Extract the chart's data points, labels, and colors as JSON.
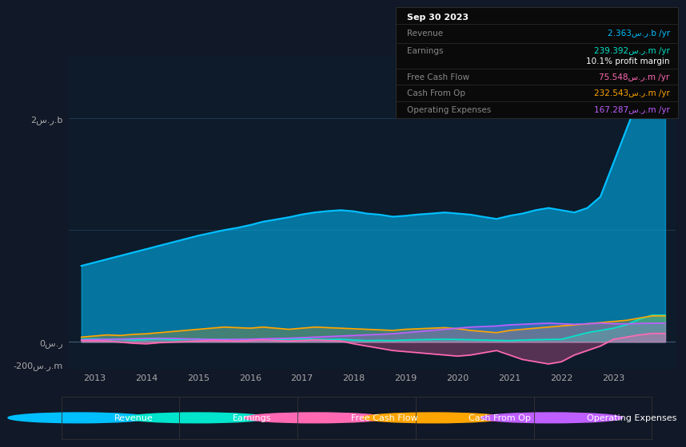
{
  "background_color": "#111827",
  "plot_bg_color": "#0d1b2a",
  "years": [
    2012.75,
    2013.0,
    2013.25,
    2013.5,
    2013.75,
    2014.0,
    2014.25,
    2014.5,
    2014.75,
    2015.0,
    2015.25,
    2015.5,
    2015.75,
    2016.0,
    2016.25,
    2016.5,
    2016.75,
    2017.0,
    2017.25,
    2017.5,
    2017.75,
    2018.0,
    2018.25,
    2018.5,
    2018.75,
    2019.0,
    2019.25,
    2019.5,
    2019.75,
    2020.0,
    2020.25,
    2020.5,
    2020.75,
    2021.0,
    2021.25,
    2021.5,
    2021.75,
    2022.0,
    2022.25,
    2022.5,
    2022.75,
    2023.0,
    2023.25,
    2023.5,
    2023.75,
    2024.0
  ],
  "revenue": [
    680,
    710,
    740,
    770,
    800,
    830,
    860,
    890,
    920,
    950,
    975,
    1000,
    1020,
    1045,
    1075,
    1095,
    1115,
    1140,
    1158,
    1170,
    1178,
    1168,
    1148,
    1138,
    1120,
    1128,
    1140,
    1148,
    1158,
    1148,
    1138,
    1118,
    1100,
    1128,
    1148,
    1178,
    1198,
    1178,
    1158,
    1198,
    1298,
    1598,
    1898,
    2198,
    2363,
    2363
  ],
  "earnings": [
    22,
    26,
    19,
    23,
    16,
    21,
    26,
    19,
    23,
    26,
    21,
    23,
    19,
    23,
    26,
    21,
    23,
    26,
    23,
    21,
    23,
    16,
    11,
    13,
    11,
    16,
    19,
    21,
    23,
    21,
    19,
    16,
    13,
    11,
    16,
    19,
    21,
    23,
    52,
    82,
    102,
    122,
    152,
    202,
    239,
    239
  ],
  "free_cash_flow": [
    12,
    10,
    7,
    -3,
    -13,
    -18,
    -8,
    -3,
    2,
    7,
    12,
    10,
    7,
    12,
    17,
    12,
    7,
    12,
    17,
    12,
    7,
    -18,
    -38,
    -58,
    -78,
    -88,
    -98,
    -108,
    -118,
    -128,
    -118,
    -98,
    -78,
    -118,
    -158,
    -178,
    -198,
    -178,
    -118,
    -78,
    -38,
    22,
    42,
    62,
    75,
    75
  ],
  "cash_from_op": [
    42,
    52,
    62,
    57,
    67,
    72,
    82,
    92,
    102,
    112,
    122,
    132,
    127,
    122,
    132,
    122,
    112,
    122,
    132,
    127,
    122,
    117,
    112,
    107,
    102,
    112,
    117,
    122,
    127,
    117,
    102,
    92,
    82,
    102,
    112,
    122,
    132,
    142,
    152,
    162,
    172,
    182,
    192,
    212,
    232,
    232
  ],
  "operating_expenses": [
    17,
    20,
    22,
    24,
    27,
    30,
    32,
    30,
    27,
    24,
    22,
    20,
    22,
    24,
    27,
    30,
    32,
    37,
    42,
    47,
    52,
    57,
    62,
    67,
    72,
    82,
    92,
    102,
    112,
    122,
    132,
    137,
    142,
    152,
    157,
    162,
    167,
    162,
    157,
    162,
    167,
    162,
    160,
    164,
    167,
    167
  ],
  "revenue_color": "#00bfff",
  "earnings_color": "#00e5cc",
  "free_cash_flow_color": "#ff69b4",
  "cash_from_op_color": "#ffa500",
  "operating_expenses_color": "#bf5fff",
  "ytick_top": "2س.ر.b",
  "ytick_zero": "0س.ر",
  "ytick_neg": "-200س.ر.m",
  "xticks": [
    2013,
    2014,
    2015,
    2016,
    2017,
    2018,
    2019,
    2020,
    2021,
    2022,
    2023
  ],
  "legend_items": [
    "Revenue",
    "Earnings",
    "Free Cash Flow",
    "Cash From Op",
    "Operating Expenses"
  ],
  "info_title": "Sep 30 2023",
  "info_revenue_label": "Revenue",
  "info_revenue_value": "2.363س.ر.b /yr",
  "info_earnings_label": "Earnings",
  "info_earnings_value": "239.392س.ر.m /yr",
  "info_profit_margin": "10.1% profit margin",
  "info_fcf_label": "Free Cash Flow",
  "info_fcf_value": "75.548س.ر.m /yr",
  "info_cfop_label": "Cash From Op",
  "info_cfop_value": "232.543س.ر.m /yr",
  "info_opex_label": "Operating Expenses",
  "info_opex_value": "167.287س.ر.m /yr"
}
